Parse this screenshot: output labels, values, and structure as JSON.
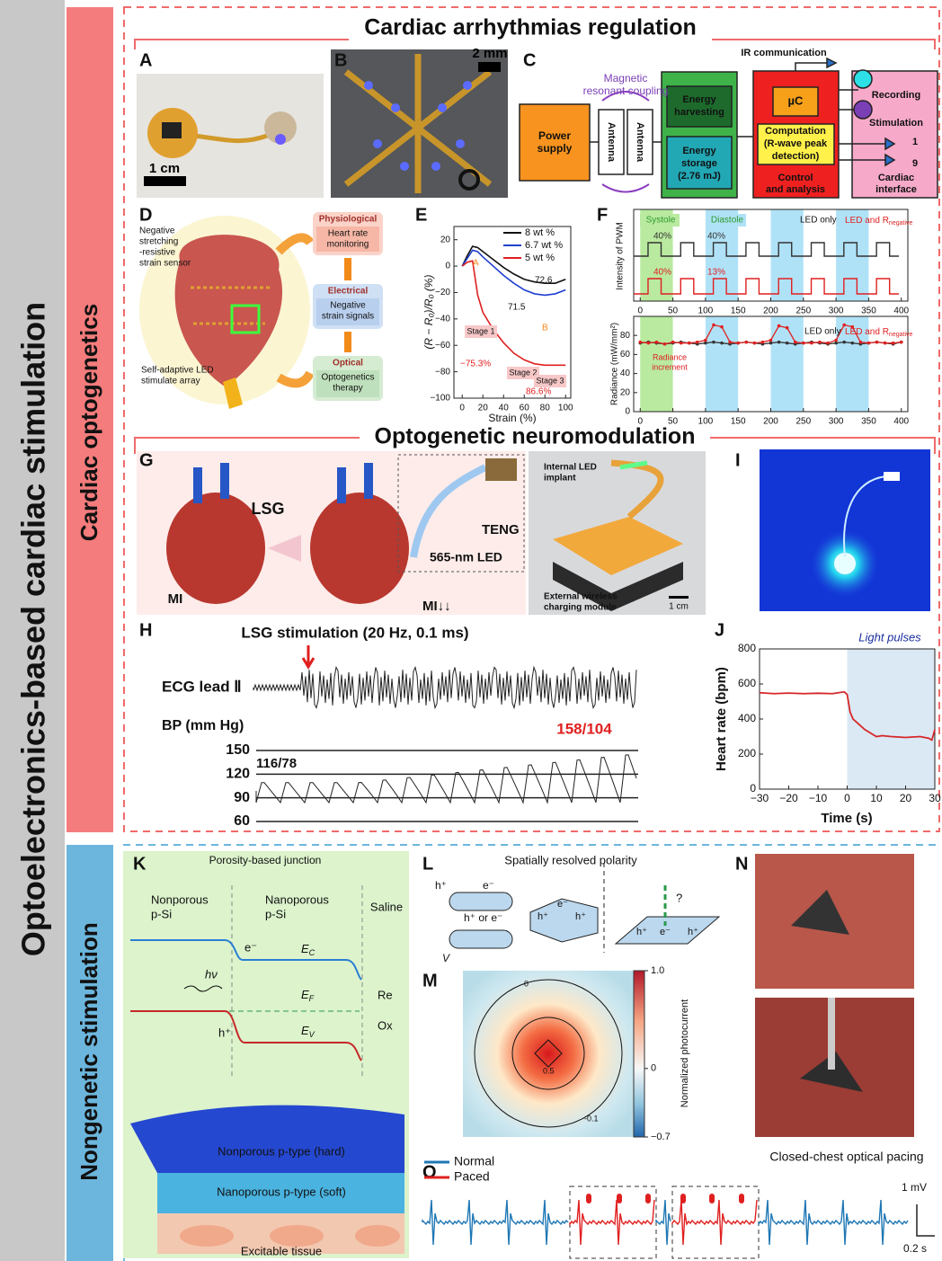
{
  "sidebar": {
    "main": "Optoelectronics-based cardiac stimulation",
    "upper": "Cardiac optogenetics",
    "lower": "Nongenetic stimulation"
  },
  "sections": {
    "upper_title": "Cardiac arrhythmias regulation",
    "middle_title": "Optogenetic neuromodulation"
  },
  "panel_letters": [
    "A",
    "B",
    "C",
    "D",
    "E",
    "F",
    "G",
    "H",
    "I",
    "J",
    "K",
    "L",
    "M",
    "N",
    "O"
  ],
  "panel_a": {
    "scale_bar": "1 cm"
  },
  "panel_b": {
    "scale_bar": "2 mm"
  },
  "panel_c": {
    "power_supply": [
      "Power",
      "supply"
    ],
    "coupling": [
      "Magnetic",
      "resonant coupling"
    ],
    "antennas": [
      "Antenna",
      "Antenna"
    ],
    "energy_harvesting": [
      "Energy",
      "harvesting"
    ],
    "energy_storage": [
      "Energy",
      "storage",
      "(2.76 mJ)"
    ],
    "ir": "IR communication",
    "uc": "µC",
    "computation": [
      "Computation",
      "(R-wave peak",
      "detection)"
    ],
    "control": [
      "Control",
      "and analysis"
    ],
    "recording": "Recording",
    "stimulation": "Stimulation",
    "channel_first": "1",
    "channel_last": "9",
    "interface": [
      "Cardiac",
      "interface"
    ]
  },
  "panel_d": {
    "sensor": [
      "Negative",
      "stretching",
      "-resistive",
      "strain sensor"
    ],
    "led_array": [
      "Self-adaptive LED",
      "stimulate array"
    ],
    "steps": [
      {
        "title": "Physiological",
        "body": [
          "Heart rate",
          "monitoring"
        ]
      },
      {
        "title": "Electrical",
        "body": [
          "Negative",
          "strain signals"
        ]
      },
      {
        "title": "Optical",
        "body": [
          "Optogenetics",
          "therapy"
        ]
      }
    ]
  },
  "panel_e": {
    "type": "line",
    "xlabel": "Strain (%)",
    "ylabel": "(R − R₀)/R₀ (%)",
    "x": [
      0,
      5,
      10,
      15,
      20,
      30,
      40,
      50,
      60,
      70,
      80,
      90,
      100
    ],
    "series": [
      {
        "name": "8 wt %",
        "color": "#111111",
        "values": [
          0,
          8,
          15,
          14,
          11,
          5,
          -1,
          -6,
          -10,
          -12,
          -13,
          -13,
          -10
        ]
      },
      {
        "name": "6.7 wt %",
        "color": "#1f3fd0",
        "values": [
          0,
          6,
          12,
          11,
          7,
          0,
          -7,
          -13,
          -18,
          -21,
          -22,
          -21,
          -18
        ]
      },
      {
        "name": "5 wt %",
        "color": "#e02020",
        "values": [
          0,
          3,
          4,
          -22,
          -35,
          -48,
          -58,
          -66,
          -71,
          -74,
          -75,
          -75,
          -75
        ]
      }
    ],
    "xlim": [
      -8,
      105
    ],
    "xticks": [
      0,
      20,
      40,
      60,
      80,
      100
    ],
    "ylim": [
      -100,
      30
    ],
    "yticks": [
      {
        "value": -100,
        "label": "−100"
      },
      {
        "value": -80,
        "label": "−80"
      },
      {
        "value": -60,
        "label": "−60"
      },
      {
        "value": -40,
        "label": "−40"
      },
      {
        "value": -20,
        "label": "−20"
      },
      0,
      20
    ],
    "annotations": [
      "72.6",
      "71.5",
      "−75.3%",
      "86.6%",
      "A",
      "B"
    ],
    "stages": [
      "Stage 1",
      "Stage 2",
      "Stage 3"
    ]
  },
  "panel_f": {
    "type": "line",
    "top_ylabel": "Intensity of PWM",
    "ylabel": "Radiance (mW/mm²)",
    "x": [
      0,
      12.5,
      25,
      37.5,
      50,
      62.5,
      75,
      87.5,
      100,
      112.5,
      125,
      137.5,
      150,
      162.5,
      175,
      187.5,
      200,
      212.5,
      225,
      237.5,
      250,
      262.5,
      275,
      287.5,
      300,
      312.5,
      325,
      337.5,
      350,
      362.5,
      375,
      387.5,
      400
    ],
    "series": [
      {
        "name": "LED only",
        "color": "#333333",
        "values": [
          72,
          73,
          72,
          71,
          72,
          73,
          72,
          71,
          72,
          73,
          72,
          71,
          72,
          73,
          72,
          71,
          72,
          73,
          72,
          71,
          72,
          73,
          72,
          71,
          72,
          73,
          72,
          71,
          72,
          73,
          72,
          71,
          73
        ]
      },
      {
        "name": "LED and R",
        "name_sub": "negative",
        "color": "#e02020",
        "values": [
          73,
          72,
          73,
          71,
          73,
          72,
          72,
          73,
          75,
          91,
          89,
          73,
          72,
          73,
          72,
          73,
          75,
          90,
          88,
          73,
          72,
          72,
          73,
          72,
          75,
          91,
          89,
          73,
          72,
          73,
          72,
          72,
          73
        ]
      }
    ],
    "bands": [
      {
        "name": "Systole",
        "color": "#b9eaa0",
        "ranges": [
          [
            0,
            50
          ]
        ]
      },
      {
        "name": "Diastole",
        "color": "#b0e2f7",
        "ranges": [
          [
            100,
            150
          ],
          [
            200,
            250
          ],
          [
            300,
            350
          ]
        ]
      }
    ],
    "xlim": [
      -10,
      410
    ],
    "xticks": [
      0,
      50,
      100,
      150,
      200,
      250,
      300,
      350,
      400
    ],
    "ylim": [
      0,
      100
    ],
    "yticks": [
      0,
      20,
      40,
      60,
      80
    ],
    "duty_labels": [
      "40%",
      "40%",
      "40%",
      "13%"
    ],
    "annotation": [
      "Radiance",
      "increment"
    ]
  },
  "panel_g": {
    "lsg": "LSG",
    "teng": "TENG",
    "led": "565-nm LED",
    "mi": "MI",
    "mi_reduced": "MI↓↓",
    "implant": [
      "Internal LED",
      "implant"
    ],
    "module": [
      "External wireless",
      "charging module"
    ],
    "scale_bar": "1 cm"
  },
  "panel_h": {
    "stimulation": "LSG stimulation (20 Hz, 0.1 ms)",
    "ecg": "ECG lead Ⅱ",
    "bp": "BP (mm Hg)",
    "after": "158/104",
    "before": "116/78",
    "bp_levels": [
      150,
      120,
      90,
      60
    ]
  },
  "panel_j": {
    "type": "line",
    "xlabel": "Time (s)",
    "ylabel": "Heart rate (bpm)",
    "x": [
      -30,
      -25,
      -20,
      -15,
      -10,
      -5,
      -1,
      0,
      1,
      2,
      4,
      6,
      8,
      10,
      12,
      15,
      20,
      25,
      28,
      29,
      30
    ],
    "series": [
      {
        "color": "#d62728",
        "values": [
          550,
          545,
          548,
          545,
          547,
          545,
          555,
          540,
          440,
          400,
          370,
          340,
          320,
          300,
          305,
          300,
          295,
          300,
          290,
          280,
          340
        ]
      }
    ],
    "highlight": {
      "label": "Light pulses",
      "range": [
        0,
        30
      ]
    },
    "xlim": [
      -30,
      30
    ],
    "xticks": [
      {
        "value": -30,
        "label": "−30"
      },
      {
        "value": -20,
        "label": "−20"
      },
      {
        "value": -10,
        "label": "−10"
      },
      0,
      10,
      20,
      30
    ],
    "ylim": [
      0,
      800
    ],
    "yticks": [
      0,
      200,
      400,
      600,
      800
    ]
  },
  "panel_k": {
    "title": "Porosity-based junction",
    "regions": [
      [
        "Nonporous",
        "p-Si"
      ],
      [
        "Nanoporous",
        "p-Si"
      ],
      [
        "Saline"
      ]
    ],
    "electron": "e⁻",
    "hole": "h⁺",
    "photon": "hν",
    "levels": [
      {
        "text": "E",
        "sub": "C"
      },
      {
        "text": "E",
        "sub": "F"
      },
      {
        "text": "E",
        "sub": "V"
      }
    ],
    "redox": [
      "Re",
      "Ox"
    ],
    "layers": [
      "Nonporous p-type (hard)",
      "Nanoporous p-type (soft)",
      "Excitable tissue"
    ]
  },
  "panel_l": {
    "title": "Spatially resolved polarity",
    "hole": "h⁺",
    "electron": "e⁻",
    "either": "h⁺ or e⁻",
    "voltage": "V",
    "question": "?"
  },
  "panel_m": {
    "colorbar_label": "Normalized photocurrent",
    "colorbar_range": [
      -0.7,
      1
    ],
    "colorbar_ticks": [
      {
        "value": 1,
        "label": "1.0"
      },
      0,
      {
        "value": -0.7,
        "label": "−0.7"
      }
    ],
    "contour_labels": [
      "0",
      "0.5",
      "-0.1"
    ]
  },
  "panel_o": {
    "legend": [
      "Normal",
      "Paced"
    ],
    "title": "Closed-chest optical pacing",
    "voltage_bar": "1 mV",
    "time_bar": "0.2 s"
  }
}
